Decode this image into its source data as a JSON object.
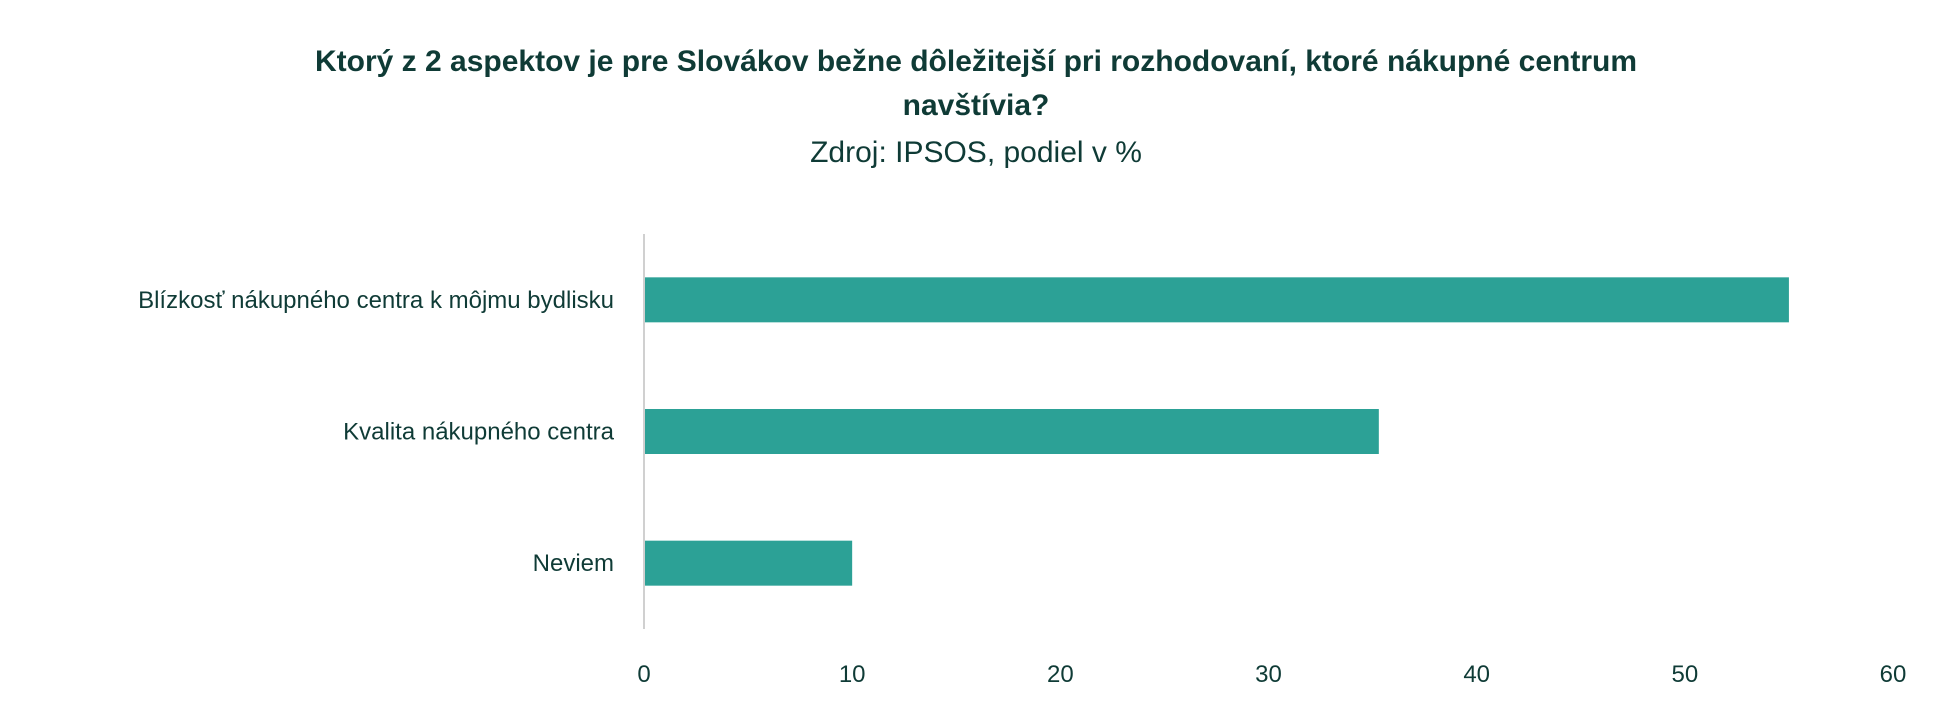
{
  "chart_data": {
    "type": "bar",
    "orientation": "horizontal",
    "title": "Ktorý z 2 aspektov je pre Slovákov bežne dôležitejší pri rozhodovaní, ktoré nákupné centrum navštívia?",
    "title_lines": [
      "Ktorý z 2 aspektov je pre Slovákov bežne dôležitejší pri rozhodovaní, ktoré nákupné centrum",
      "navštívia?"
    ],
    "subtitle": "Zdroj: IPSOS, podiel v %",
    "categories": [
      "Blízkosť nákupného centra k môjmu bydlisku",
      "Kvalita nákupného centra",
      "Neviem"
    ],
    "values": [
      55,
      35.3,
      10
    ],
    "xlim": [
      0,
      60
    ],
    "xticks": [
      "0",
      "10",
      "20",
      "30",
      "40",
      "50",
      "60"
    ],
    "grid": false,
    "legend": "none",
    "bar_color": "#2ca196",
    "text_color": "#0f3b36"
  }
}
